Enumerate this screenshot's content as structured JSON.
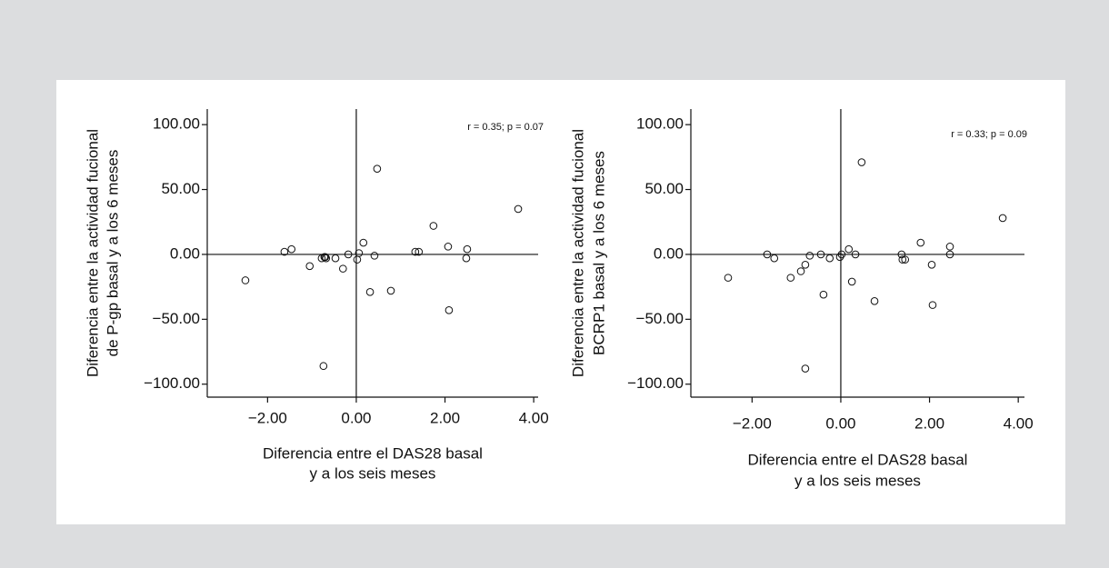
{
  "chart_data": [
    {
      "type": "scatter",
      "annotation": "r = 0.35; p = 0.07",
      "x_label": [
        "Diferencia entre el DAS28 basal",
        "y a los seis meses"
      ],
      "y_label": [
        "Diferencia entre la actividad fucional",
        "de P-gp basal y a los 6 meses"
      ],
      "x": [
        -2.5,
        -1.62,
        -1.46,
        -1.05,
        -0.78,
        -0.72,
        -0.68,
        -0.7,
        -0.74,
        -0.47,
        -0.3,
        -0.18,
        0.02,
        0.06,
        0.16,
        0.31,
        0.41,
        0.47,
        0.78,
        1.33,
        1.41,
        1.74,
        2.07,
        2.09,
        2.5,
        2.48,
        3.65
      ],
      "values": [
        -20,
        2,
        4,
        -9,
        -3,
        -2,
        -3,
        -2,
        -86,
        -3,
        -11,
        0,
        -4,
        1,
        9,
        -29,
        -1,
        66,
        -28,
        2,
        2,
        22,
        6,
        -43,
        4,
        -3,
        35
      ],
      "xlim": [
        -3.36,
        4.1
      ],
      "xticks": [
        {
          "value": -2,
          "label": "−2.00"
        },
        {
          "value": 0,
          "label": "0.00"
        },
        {
          "value": 2,
          "label": "2.00"
        },
        {
          "value": 4,
          "label": "4.00"
        }
      ],
      "ylim": [
        -110,
        112
      ],
      "yticks": [
        {
          "value": -100,
          "label": "−100.00"
        },
        {
          "value": -50,
          "label": "−50.00"
        },
        {
          "value": 0,
          "label": "0.00"
        },
        {
          "value": 50,
          "label": "50.00"
        },
        {
          "value": 100,
          "label": "100.00"
        }
      ],
      "color": "#111111"
    },
    {
      "type": "scatter",
      "annotation": "r = 0.33; p = 0.09",
      "x_label": [
        "Diferencia entre el DAS28 basal",
        "y a los seis meses"
      ],
      "y_label": [
        "Diferencia entre la actividad fucional",
        "BCRP1 basal y a los 6 meses"
      ],
      "x": [
        -2.54,
        -1.66,
        -1.5,
        -1.13,
        -0.9,
        -0.8,
        -0.8,
        -0.7,
        -0.45,
        -0.39,
        -0.25,
        -0.02,
        0.02,
        0.18,
        0.25,
        0.33,
        0.47,
        0.76,
        1.37,
        1.39,
        1.45,
        1.8,
        2.05,
        2.07,
        2.46,
        2.46,
        3.65
      ],
      "values": [
        -18,
        0,
        -3,
        -18,
        -13,
        -8,
        -88,
        -1,
        0,
        -31,
        -3,
        -2,
        0,
        4,
        -21,
        0,
        71,
        -36,
        0,
        -4,
        -4,
        9,
        -8,
        -39,
        6,
        0,
        28
      ],
      "xlim": [
        -3.38,
        4.14
      ],
      "xticks": [
        {
          "value": -2,
          "label": "−2.00"
        },
        {
          "value": 0,
          "label": "0.00"
        },
        {
          "value": 2,
          "label": "2.00"
        },
        {
          "value": 4,
          "label": "4.00"
        }
      ],
      "ylim": [
        -110,
        112
      ],
      "yticks": [
        {
          "value": -100,
          "label": "−100.00"
        },
        {
          "value": -50,
          "label": "−50.00"
        },
        {
          "value": 0,
          "label": "0.00"
        },
        {
          "value": 50,
          "label": "50.00"
        },
        {
          "value": 100,
          "label": "100.00"
        }
      ],
      "color": "#111111"
    }
  ]
}
